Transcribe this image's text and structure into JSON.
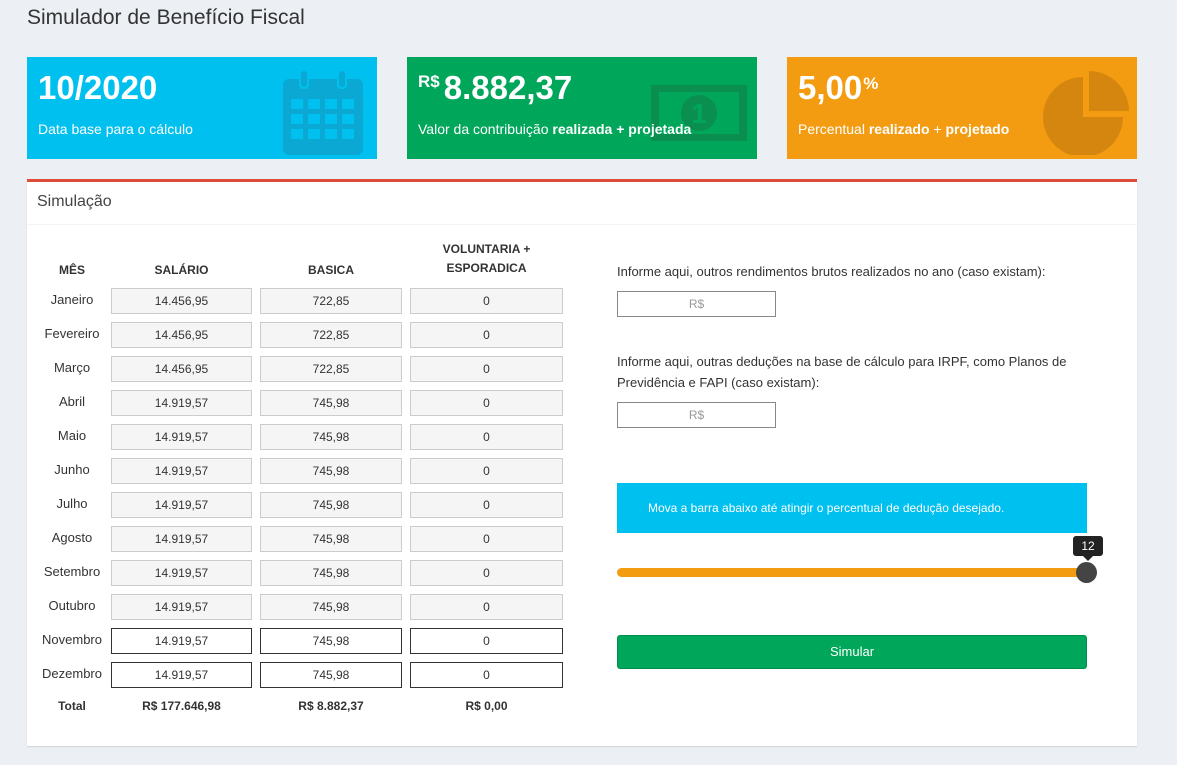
{
  "page": {
    "title": "Simulador de Benefício Fiscal"
  },
  "info_boxes": {
    "date": {
      "value": "10/2020",
      "desc": "Data base para o cálculo",
      "icon": "calendar-icon",
      "color": "#00c0ef"
    },
    "contribution": {
      "prefix": "R$",
      "value": "8.882,37",
      "desc_start": "Valor da contribuição ",
      "desc_bold1": "realizada",
      "desc_mid": " + ",
      "desc_bold2": "projetada",
      "icon": "money-bill-icon",
      "color": "#00a65a"
    },
    "percent": {
      "value": "5,00",
      "suffix": "%",
      "desc_start": "Percentual ",
      "desc_bold1": "realizado",
      "desc_mid": " + ",
      "desc_bold2": "projetado",
      "icon": "pie-chart-icon",
      "color": "#f39c12"
    }
  },
  "simulation": {
    "title": "Simulação",
    "headers": {
      "month": "MÊS",
      "salary": "SALÁRIO",
      "basic": "BASICA",
      "voluntary": "VOLUNTARIA + ESPORADICA"
    },
    "rows": [
      {
        "month": "Janeiro",
        "salary": "14.456,95",
        "basic": "722,85",
        "voluntary": "0",
        "editable": false
      },
      {
        "month": "Fevereiro",
        "salary": "14.456,95",
        "basic": "722,85",
        "voluntary": "0",
        "editable": false
      },
      {
        "month": "Março",
        "salary": "14.456,95",
        "basic": "722,85",
        "voluntary": "0",
        "editable": false
      },
      {
        "month": "Abril",
        "salary": "14.919,57",
        "basic": "745,98",
        "voluntary": "0",
        "editable": false
      },
      {
        "month": "Maio",
        "salary": "14.919,57",
        "basic": "745,98",
        "voluntary": "0",
        "editable": false
      },
      {
        "month": "Junho",
        "salary": "14.919,57",
        "basic": "745,98",
        "voluntary": "0",
        "editable": false
      },
      {
        "month": "Julho",
        "salary": "14.919,57",
        "basic": "745,98",
        "voluntary": "0",
        "editable": false
      },
      {
        "month": "Agosto",
        "salary": "14.919,57",
        "basic": "745,98",
        "voluntary": "0",
        "editable": false
      },
      {
        "month": "Setembro",
        "salary": "14.919,57",
        "basic": "745,98",
        "voluntary": "0",
        "editable": false
      },
      {
        "month": "Outubro",
        "salary": "14.919,57",
        "basic": "745,98",
        "voluntary": "0",
        "editable": false
      },
      {
        "month": "Novembro",
        "salary": "14.919,57",
        "basic": "745,98",
        "voluntary": "0",
        "editable": true
      },
      {
        "month": "Dezembro",
        "salary": "14.919,57",
        "basic": "745,98",
        "voluntary": "0",
        "editable": true
      }
    ],
    "totals": {
      "label": "Total",
      "salary": "R$ 177.646,98",
      "basic": "R$ 8.882,37",
      "voluntary": "R$ 0,00"
    },
    "other_income": {
      "label": "Informe aqui, outros rendimentos brutos realizados no ano (caso existam):",
      "placeholder": "R$"
    },
    "other_deductions": {
      "label": "Informe aqui, outras deduções na base de cálculo para IRPF, como Planos de Previdência e FAPI (caso existam):",
      "placeholder": "R$"
    },
    "slider": {
      "hint": "Mova a barra abaixo até atingir o percentual de dedução desejado.",
      "value": "12",
      "fill_fraction": 1.0
    },
    "simulate_label": "Simular"
  }
}
